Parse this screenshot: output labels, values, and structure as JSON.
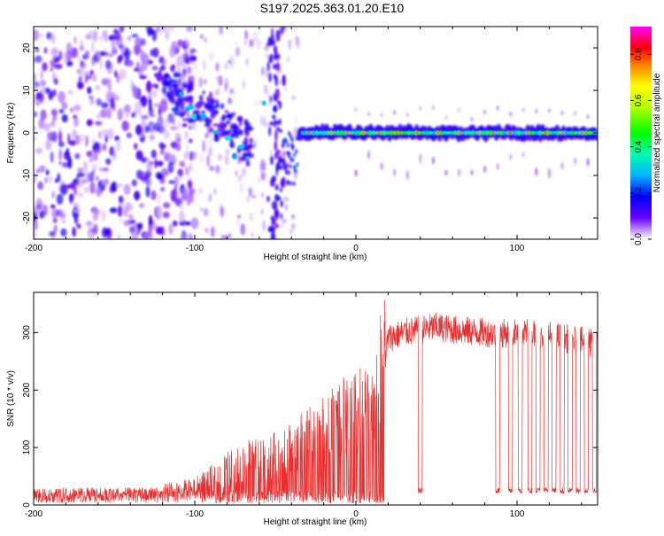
{
  "title": "S197.2025.363.01.20.E10",
  "chart_data": [
    {
      "type": "heatmap",
      "name": "spectrogram",
      "xlabel": "Height of straight line (km)",
      "ylabel": "Frequency (Hz)",
      "xlim": [
        -200,
        150
      ],
      "ylim": [
        -25,
        25
      ],
      "xticks": [
        -200,
        -100,
        0,
        100
      ],
      "yticks": [
        -20,
        -10,
        0,
        10,
        20
      ],
      "colorbar": {
        "label": "Normalized spectral amplitude",
        "range": [
          0,
          0.92
        ],
        "ticks": [
          "0.0",
          "0.2",
          "0.4",
          "0.6",
          "0.8"
        ],
        "tick_values": [
          0,
          0.2,
          0.4,
          0.6,
          0.8
        ]
      },
      "features": [
        {
          "region": "scattered noise",
          "x_range": [
            -200,
            -120
          ],
          "freq_range": [
            -25,
            25
          ],
          "amplitude": 0.15
        },
        {
          "region": "descending trace",
          "x_start": -120,
          "x_end": -65,
          "freq_start": 12,
          "freq_end": -3,
          "amplitude": 0.35
        },
        {
          "region": "vertical streak",
          "x": -52,
          "freq_range": [
            -25,
            25
          ],
          "amplitude": 0.2
        },
        {
          "region": "vertical streak",
          "x": -47,
          "freq_range": [
            -25,
            25
          ],
          "amplitude": 0.2
        },
        {
          "region": "steady line",
          "x_range": [
            -35,
            150
          ],
          "freq": 0,
          "amplitude": 0.55
        }
      ]
    },
    {
      "type": "line",
      "name": "snr",
      "xlabel": "Height of straight line (km)",
      "ylabel": "SNR (10 * v/v)",
      "xlim": [
        -200,
        150
      ],
      "ylim": [
        0,
        370
      ],
      "xticks": [
        -200,
        -100,
        0,
        100
      ],
      "yticks": [
        0,
        100,
        200,
        300
      ],
      "color": "#e83030",
      "x": [
        -200,
        -180,
        -160,
        -140,
        -120,
        -100,
        -90,
        -80,
        -70,
        -60,
        -50,
        -40,
        -30,
        -20,
        -10,
        0,
        10,
        15,
        20,
        30,
        40,
        50,
        60,
        70,
        80,
        90,
        100,
        110,
        120,
        130,
        140,
        150
      ],
      "y": [
        15,
        18,
        16,
        20,
        22,
        28,
        40,
        55,
        65,
        70,
        75,
        85,
        100,
        110,
        130,
        140,
        145,
        200,
        290,
        300,
        305,
        310,
        305,
        302,
        300,
        298,
        300,
        300,
        295,
        290,
        285,
        280
      ],
      "dropouts_x": [
        40,
        88,
        96,
        102,
        108,
        113,
        118,
        123,
        128,
        133,
        138,
        143,
        148
      ],
      "dropout_level": 20
    }
  ]
}
